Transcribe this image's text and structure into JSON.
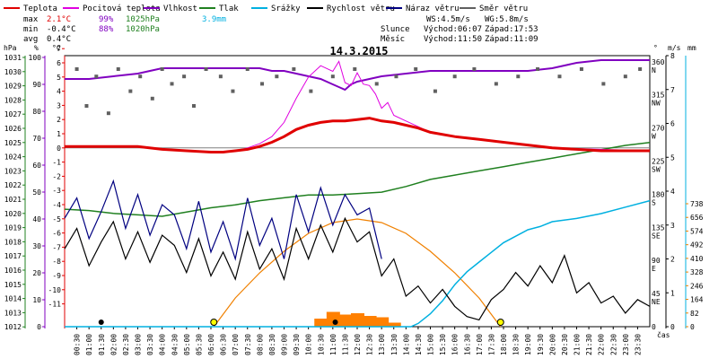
{
  "chart_data": {
    "type": "line",
    "title": "14.3.2015",
    "legend": [
      {
        "name": "Teplota",
        "color": "#e00000"
      },
      {
        "name": "Pocitová teplota",
        "color": "#e000e0"
      },
      {
        "name": "Vlhkost",
        "color": "#8000c0"
      },
      {
        "name": "Tlak",
        "color": "#208020"
      },
      {
        "name": "Srážky",
        "color": "#00b0e0"
      },
      {
        "name": "Rychlost větru",
        "color": "#000000"
      },
      {
        "name": "Náraz větru",
        "color": "#000080"
      },
      {
        "name": "Směr větru",
        "color": "#606060"
      }
    ],
    "stats": {
      "max_label": "max",
      "min_label": "min",
      "avg_label": "avg",
      "max_temp": "2.1°C",
      "max_hum": "99%",
      "max_press": "1025hPa",
      "max_rain": "3.9mm",
      "min_temp": "-0.4°C",
      "min_hum": "88%",
      "min_press": "1020hPa",
      "avg_temp": "0.4°C"
    },
    "wind_info": {
      "ws": "WS:4.5m/s",
      "wg": "WG:5.8m/s"
    },
    "sun_info": {
      "label": "Slunce",
      "rise": "Východ:06:07",
      "set": "Západ:17:53"
    },
    "moon_info": {
      "label": "Měsíc",
      "rise": "Východ:11:50",
      "set": "Západ:11:09"
    },
    "axes": {
      "hpa_label": "hPa",
      "hum_label": "%",
      "temp_label": "°C",
      "dir_label": "°",
      "wind_label": "m/s",
      "rain_label": "mm",
      "x_label": "čas",
      "hpa_ticks": [
        "1031",
        "1030",
        "1029",
        "1028",
        "1027",
        "1026",
        "1025",
        "1024",
        "1023",
        "1022",
        "1021",
        "1020",
        "1019",
        "1018",
        "1017",
        "1016",
        "1015",
        "1014",
        "1013",
        "1012"
      ],
      "hum_ticks": [
        "100",
        "90",
        "80",
        "70",
        "60",
        "50",
        "40",
        "30",
        "20",
        "10",
        "0"
      ],
      "temp_ticks": [
        "7",
        "6",
        "5",
        "4",
        "3",
        "2",
        "1",
        "0",
        "-1",
        "-2",
        "-3",
        "-4",
        "-5",
        "-6",
        "-7",
        "-8",
        "-9",
        "-10",
        "-11"
      ],
      "dir_ticks": [
        {
          "deg": "360",
          "name": "N"
        },
        {
          "deg": "315",
          "name": "NW"
        },
        {
          "deg": "270",
          "name": "W"
        },
        {
          "deg": "225",
          "name": "SW"
        },
        {
          "deg": "180",
          "name": "S"
        },
        {
          "deg": "135",
          "name": "SE"
        },
        {
          "deg": "90",
          "name": "E"
        },
        {
          "deg": "45",
          "name": "NE"
        },
        {
          "deg": "0",
          "name": ""
        }
      ],
      "wind_ticks": [
        "8",
        "7",
        "6",
        "5",
        "4",
        "3",
        "2",
        "1",
        "0"
      ],
      "rain_ticks": [
        "738",
        "656",
        "574",
        "492",
        "410",
        "328",
        "246",
        "164",
        "82",
        "0"
      ],
      "time_ticks": [
        "00:30",
        "01:00",
        "01:30",
        "02:00",
        "02:30",
        "03:00",
        "03:30",
        "04:00",
        "04:30",
        "05:00",
        "05:30",
        "06:00",
        "06:30",
        "07:00",
        "07:30",
        "08:00",
        "08:30",
        "09:00",
        "09:30",
        "10:00",
        "10:30",
        "11:00",
        "11:30",
        "12:00",
        "12:30",
        "13:00",
        "13:30",
        "14:00",
        "14:30",
        "15:00",
        "15:30",
        "16:00",
        "16:30",
        "17:00",
        "17:30",
        "18:00",
        "18:30",
        "19:00",
        "19:30",
        "20:00",
        "20:30",
        "21:00",
        "21:30",
        "22:00",
        "22:30",
        "23:00",
        "23:30"
      ]
    },
    "x_range_hours": [
      0,
      24
    ],
    "temperature": {
      "t": [
        0,
        1,
        2,
        3,
        4,
        5,
        6,
        6.5,
        7,
        7.5,
        8,
        8.5,
        9,
        9.5,
        10,
        10.5,
        11,
        11.5,
        12,
        12.5,
        13,
        13.5,
        14,
        14.5,
        15,
        16,
        17,
        18,
        19,
        20,
        21,
        22,
        23,
        24
      ],
      "v": [
        0.1,
        0.1,
        0.1,
        0.1,
        -0.1,
        -0.2,
        -0.3,
        -0.3,
        -0.2,
        -0.1,
        0.1,
        0.4,
        0.8,
        1.3,
        1.6,
        1.8,
        1.9,
        1.9,
        2.0,
        2.1,
        1.9,
        1.8,
        1.6,
        1.4,
        1.1,
        0.8,
        0.6,
        0.4,
        0.2,
        0.0,
        -0.1,
        -0.2,
        -0.2,
        -0.2
      ]
    },
    "feels_like": {
      "t": [
        0,
        1,
        2,
        3,
        4,
        5,
        6,
        7,
        7.5,
        8,
        8.5,
        9,
        9.5,
        10,
        10.5,
        11,
        11.25,
        11.5,
        11.75,
        12,
        12.25,
        12.5,
        12.75,
        13,
        13.25,
        13.5,
        14,
        14.5,
        15,
        16,
        17,
        18,
        19,
        20,
        24
      ],
      "v": [
        0.1,
        0.1,
        0.1,
        0.1,
        -0.1,
        -0.2,
        -0.3,
        -0.2,
        0.0,
        0.3,
        0.8,
        1.8,
        3.5,
        5.0,
        5.8,
        5.4,
        6.1,
        4.6,
        4.4,
        5.3,
        4.5,
        4.4,
        3.8,
        2.8,
        3.2,
        2.3,
        1.9,
        1.5,
        1.1,
        0.8,
        0.6,
        0.4,
        0.2,
        0.0,
        -0.2
      ]
    },
    "humidity": {
      "t": [
        0,
        0.5,
        1,
        2,
        3,
        3.5,
        4,
        5,
        6,
        7,
        8,
        8.5,
        9,
        9.5,
        10,
        10.5,
        11,
        11.25,
        11.5,
        11.75,
        12,
        12.5,
        13,
        14,
        15,
        16,
        17,
        18,
        19,
        20,
        21,
        22,
        23,
        24
      ],
      "v": [
        92,
        92,
        92,
        93,
        94,
        95,
        96,
        96,
        96,
        96,
        96,
        95,
        95,
        94,
        93,
        92,
        90,
        89,
        88,
        90,
        91,
        92,
        93,
        94,
        95,
        95,
        95,
        95,
        95,
        96,
        98,
        99,
        99,
        99
      ]
    },
    "pressure": {
      "t": [
        0,
        1,
        2,
        3,
        4,
        5,
        6,
        7,
        8,
        9,
        10,
        11,
        12,
        13,
        14,
        15,
        16,
        17,
        18,
        19,
        20,
        21,
        22,
        23,
        24
      ],
      "v": [
        1020.3,
        1020.2,
        1020.0,
        1019.9,
        1019.8,
        1020.1,
        1020.4,
        1020.6,
        1020.9,
        1021.1,
        1021.3,
        1021.3,
        1021.4,
        1021.5,
        1021.9,
        1022.4,
        1022.7,
        1023.0,
        1023.3,
        1023.6,
        1023.9,
        1024.2,
        1024.5,
        1024.8,
        1025.0
      ]
    },
    "rain_total": {
      "t": [
        0,
        14.2,
        14.5,
        15,
        15.5,
        16,
        16.5,
        17,
        17.5,
        18,
        18.5,
        19,
        19.5,
        20,
        21,
        22,
        23,
        24
      ],
      "v": [
        0,
        0,
        0.1,
        0.4,
        0.8,
        1.3,
        1.7,
        2.0,
        2.3,
        2.6,
        2.8,
        3.0,
        3.1,
        3.25,
        3.35,
        3.5,
        3.7,
        3.9
      ]
    },
    "wind_speed": {
      "t": [
        0,
        0.5,
        1,
        1.5,
        2,
        2.5,
        3,
        3.5,
        4,
        4.5,
        5,
        5.5,
        6,
        6.5,
        7,
        7.5,
        8,
        8.5,
        9,
        9.5,
        10,
        10.5,
        11,
        11.5,
        12,
        12.5,
        13,
        13.5,
        14,
        14.5,
        15,
        15.5,
        16,
        16.5,
        17,
        17.5,
        18,
        18.5,
        19,
        19.5,
        20,
        20.5,
        21,
        21.5,
        22,
        22.5,
        23,
        23.5,
        24
      ],
      "v": [
        2.3,
        2.9,
        1.8,
        2.5,
        3.1,
        2.0,
        2.8,
        1.9,
        2.7,
        2.4,
        1.6,
        2.6,
        1.5,
        2.2,
        1.4,
        2.8,
        1.7,
        2.3,
        1.4,
        2.9,
        2.0,
        3.0,
        2.2,
        3.2,
        2.5,
        2.8,
        1.5,
        2.0,
        0.9,
        1.2,
        0.7,
        1.1,
        0.6,
        0.3,
        0.2,
        0.8,
        1.1,
        1.6,
        1.2,
        1.8,
        1.3,
        2.1,
        1.0,
        1.3,
        0.7,
        0.9,
        0.4,
        0.8,
        0.6
      ]
    },
    "wind_gust": {
      "t": [
        0,
        0.5,
        1,
        1.5,
        2,
        2.5,
        3,
        3.5,
        4,
        4.5,
        5,
        5.5,
        6,
        6.5,
        7,
        7.5,
        8,
        8.5,
        9,
        9.5,
        10,
        10.5,
        11,
        11.5,
        12,
        12.5,
        13
      ],
      "v": [
        3.2,
        3.8,
        2.6,
        3.4,
        4.3,
        2.9,
        3.9,
        2.7,
        3.6,
        3.3,
        2.3,
        3.7,
        2.2,
        3.1,
        2.0,
        3.8,
        2.4,
        3.2,
        2.0,
        3.9,
        2.8,
        4.1,
        3.0,
        3.9,
        3.3,
        3.5,
        2.0
      ]
    },
    "sun_rad": {
      "t": [
        6.12,
        7,
        8,
        9,
        10,
        11,
        12,
        13,
        14,
        15,
        16,
        17,
        17.88
      ],
      "v": [
        0,
        160,
        300,
        420,
        520,
        580,
        600,
        580,
        520,
        420,
        300,
        160,
        0
      ]
    },
    "rain_rate_bars": {
      "t": [
        10.5,
        11,
        11.5,
        12,
        12.5,
        13,
        13.5
      ],
      "v": [
        30,
        55,
        45,
        50,
        40,
        35,
        15
      ]
    },
    "wind_dir_samples": [
      0.5,
      0.9,
      1.3,
      1.8,
      2.2,
      2.7,
      3.1,
      3.6,
      4.0,
      4.4,
      4.9,
      5.3,
      5.8,
      6.4,
      6.9,
      7.5,
      8.1,
      8.7,
      9.4,
      10.1,
      11.0,
      11.9,
      12.8,
      13.6,
      14.4,
      15.2,
      16.0,
      16.8,
      17.7,
      18.6,
      19.4,
      20.3,
      21.2,
      22.1,
      23.0,
      23.6
    ],
    "wind_dir_deg": [
      350,
      300,
      340,
      290,
      350,
      320,
      340,
      310,
      350,
      330,
      340,
      300,
      350,
      340,
      320,
      350,
      330,
      340,
      350,
      320,
      340,
      350,
      330,
      340,
      350,
      320,
      340,
      350,
      330,
      340,
      350,
      340,
      350,
      330,
      340,
      350
    ],
    "sunrise_marker": 6.12,
    "sunset_marker": 17.88,
    "moon_markers": [
      1.5,
      11.1
    ],
    "colors": {
      "sun": "#f08000",
      "rain": "#00b0e0",
      "sun_fill": "#ff8000"
    }
  }
}
